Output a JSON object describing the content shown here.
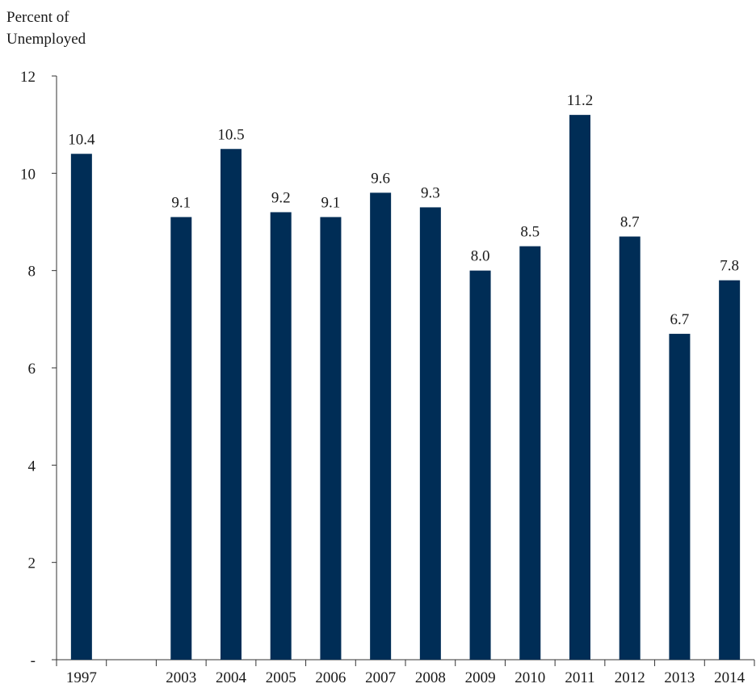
{
  "chart_data": {
    "type": "bar",
    "ylabel": "Percent of Unemployed",
    "ylabel_lines": [
      "Percent of",
      "Unemployed"
    ],
    "title": "",
    "xlabel": "",
    "ylim": [
      0,
      12
    ],
    "yticks": [
      {
        "value": 0,
        "label": "-"
      },
      {
        "value": 2,
        "label": "2"
      },
      {
        "value": 4,
        "label": "4"
      },
      {
        "value": 6,
        "label": "6"
      },
      {
        "value": 8,
        "label": "8"
      },
      {
        "value": 10,
        "label": "10"
      },
      {
        "value": 12,
        "label": "12"
      }
    ],
    "categories": [
      "1997",
      "",
      "2003",
      "2004",
      "2005",
      "2006",
      "2007",
      "2008",
      "2009",
      "2010",
      "2011",
      "2012",
      "2013",
      "2014"
    ],
    "values": [
      10.4,
      null,
      9.1,
      10.5,
      9.2,
      9.1,
      9.6,
      9.3,
      8.0,
      8.5,
      11.2,
      8.7,
      6.7,
      7.8
    ],
    "labels": [
      "10.4",
      "",
      "9.1",
      "10.5",
      "9.2",
      "9.1",
      "9.6",
      "9.3",
      "8.0",
      "8.5",
      "11.2",
      "8.7",
      "6.7",
      "7.8"
    ],
    "bar_color": "#002d56",
    "grid": false,
    "legend": "none"
  }
}
